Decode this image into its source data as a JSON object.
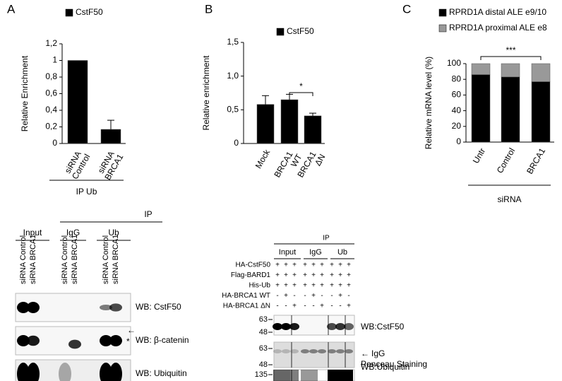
{
  "chart_data": [
    {
      "type": "bar",
      "panel_label": "A",
      "ylabel": "Relative Enrichment",
      "categories": [
        "siRNA Control",
        "siRNA BRCA1"
      ],
      "series": [
        {
          "name": "CstF50",
          "color": "#000000",
          "values": [
            1.0,
            0.17
          ],
          "errors": [
            0,
            0.11
          ]
        }
      ],
      "ylim": [
        0,
        1.2
      ],
      "yticks": [
        0,
        {
          "value": 0.2,
          "label": "0,2"
        },
        {
          "value": 0.4,
          "label": "0,4"
        },
        {
          "value": 0.6,
          "label": "0,6"
        },
        {
          "value": 0.8,
          "label": "0,8"
        },
        1,
        {
          "value": 1.2,
          "label": "1,2"
        }
      ],
      "group_label": "IP Ub"
    },
    {
      "type": "bar",
      "panel_label": "B",
      "ylabel": "Relative enrichment",
      "categories": [
        "Mock",
        "BRCA1 WT",
        "BRCA1 ΔN"
      ],
      "series": [
        {
          "name": "CstF50",
          "color": "#000000",
          "values": [
            0.58,
            0.65,
            0.41
          ],
          "errors": [
            0.13,
            0.08,
            0.04
          ]
        }
      ],
      "ylim": [
        0,
        1.5
      ],
      "yticks": [
        0,
        {
          "value": 0.5,
          "label": "0,5"
        },
        {
          "value": 1.0,
          "label": "1,0"
        },
        {
          "value": 1.5,
          "label": "1,5"
        }
      ],
      "annotation": "*"
    },
    {
      "type": "stacked_bar",
      "panel_label": "C",
      "ylabel": "Relative mRNA level (%)",
      "categories": [
        "Untr",
        "Control",
        "BRCA1"
      ],
      "series": [
        {
          "name": "RPRD1A distal ALE e9/10",
          "color": "#000000",
          "values": [
            86,
            83,
            77
          ],
          "errors": [
            2,
            2,
            1
          ]
        },
        {
          "name": "RPRD1A proximal ALE e8",
          "color": "#999999",
          "values": [
            14,
            17,
            23
          ]
        }
      ],
      "ylim": [
        0,
        100
      ],
      "yticks": [
        0,
        20,
        40,
        60,
        80,
        100
      ],
      "annotation": "***",
      "group_label": "siRNA"
    }
  ],
  "blot_left": {
    "ip": "IP",
    "groups": [
      "Input",
      "IgG",
      "Ub"
    ],
    "lanes": [
      "siRNA Control",
      "siRNA BRCA1",
      "siRNA Control",
      "siRNA BRCA1",
      "siRNA Control",
      "siRNA BRCA1"
    ],
    "rows": [
      "WB: CstF50",
      "WB: β-catenin",
      "WB: Ubiquitin"
    ],
    "arrow": "←",
    "star": "*"
  },
  "blot_right": {
    "ip": "IP",
    "groups": [
      "Input",
      "IgG",
      "Ub"
    ],
    "conditions": [
      {
        "label": "HA-CstF50",
        "signs": [
          "+",
          "+",
          "+",
          "+",
          "+",
          "+",
          "+",
          "+",
          "+"
        ]
      },
      {
        "label": "Flag-BARD1",
        "signs": [
          "+",
          "+",
          "+",
          "+",
          "+",
          "+",
          "+",
          "+",
          "+"
        ]
      },
      {
        "label": "His-Ub",
        "signs": [
          "+",
          "+",
          "+",
          "+",
          "+",
          "+",
          "+",
          "+",
          "+"
        ]
      },
      {
        "label": "HA-BRCA1 WT",
        "signs": [
          "-",
          "+",
          "-",
          "-",
          "+",
          "-",
          "-",
          "+",
          "-"
        ]
      },
      {
        "label": "HA-BRCA1 ΔN",
        "signs": [
          "-",
          "-",
          "+",
          "-",
          "-",
          "+",
          "-",
          "-",
          "+"
        ]
      }
    ],
    "markers": [
      "63",
      "48",
      "63",
      "48",
      "135"
    ],
    "rows": [
      "WB:CstF50",
      "IgG",
      "Ponceau Staining",
      "WB:Ubiquitin"
    ],
    "arrow": "←"
  }
}
